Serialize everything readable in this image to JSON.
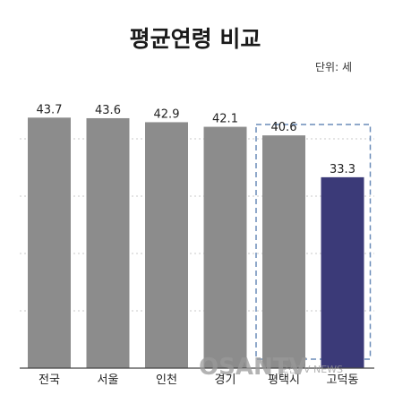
{
  "chart_data": {
    "type": "bar",
    "title": "평균연령 비교",
    "unit_label": "단위: 세",
    "categories": [
      "전국",
      "서울",
      "인천",
      "경기",
      "평택시",
      "고덕동"
    ],
    "values": [
      43.7,
      43.6,
      42.9,
      42.1,
      40.6,
      33.3
    ],
    "value_labels": [
      "43.7",
      "43.6",
      "42.9",
      "42.1",
      "40.6",
      "33.3"
    ],
    "bar_colors": [
      "#8c8c8c",
      "#8c8c8c",
      "#8c8c8c",
      "#8c8c8c",
      "#8c8c8c",
      "#3b3a78"
    ],
    "highlight_group": [
      "평택시",
      "고덕동"
    ],
    "highlight_border_color": "#6a8cb8",
    "ylim": [
      0,
      45
    ],
    "grid": true,
    "xlabel": "",
    "ylabel": ""
  },
  "watermark": {
    "logo_text": "OSANTV",
    "site_text": "오산TV NEWS"
  }
}
